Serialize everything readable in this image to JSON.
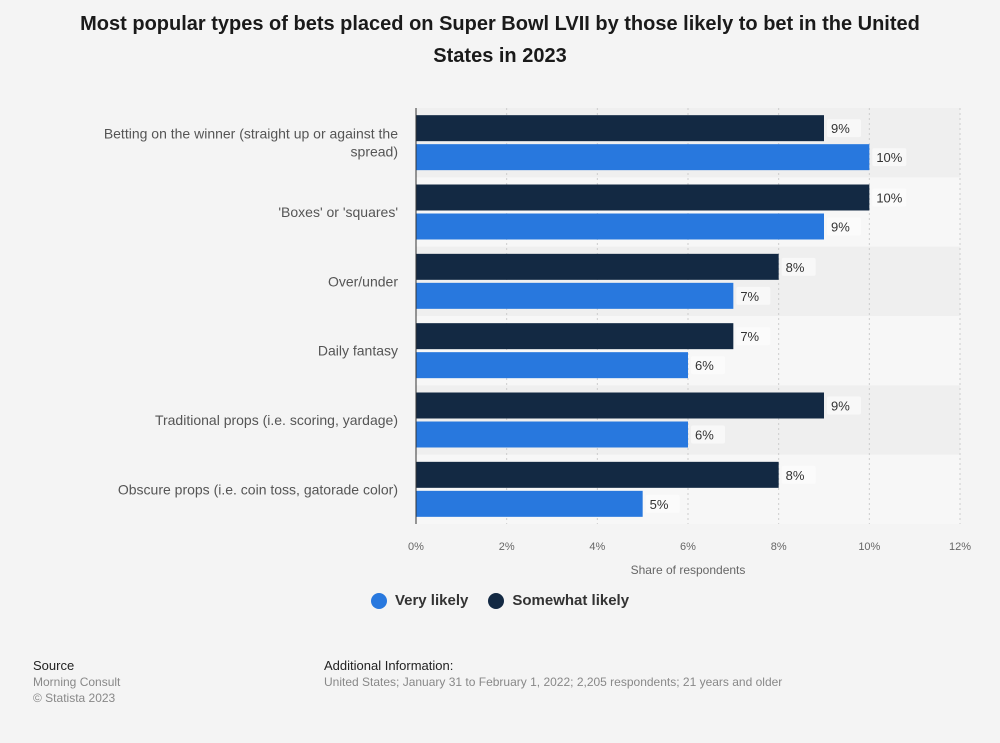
{
  "title": "Most popular types of bets placed on Super Bowl LVII by those likely to bet in the United States in 2023",
  "colors": {
    "very_likely": "#2878de",
    "somewhat_likely": "#132943",
    "band_dark": "#efefef",
    "band_light": "#f7f7f7",
    "grid": "#cccccc",
    "axis": "#333333"
  },
  "chart_data": {
    "type": "bar",
    "orientation": "horizontal",
    "categories": [
      "Betting on the winner (straight up or against the spread)",
      "'Boxes' or 'squares'",
      "Over/under",
      "Daily fantasy",
      "Traditional props (i.e. scoring, yardage)",
      "Obscure props (i.e. coin toss, gatorade color)"
    ],
    "category_lines": [
      [
        "Betting on the winner (straight up or against the",
        "spread)"
      ],
      [
        "'Boxes' or 'squares'"
      ],
      [
        "Over/under"
      ],
      [
        "Daily fantasy"
      ],
      [
        "Traditional props (i.e. scoring, yardage)"
      ],
      [
        "Obscure props (i.e. coin toss, gatorade color)"
      ]
    ],
    "series": [
      {
        "name": "Somewhat likely",
        "values": [
          9,
          10,
          8,
          7,
          9,
          8
        ],
        "labels": [
          "9%",
          "10%",
          "8%",
          "7%",
          "9%",
          "8%"
        ]
      },
      {
        "name": "Very likely",
        "values": [
          10,
          9,
          7,
          6,
          6,
          5
        ],
        "labels": [
          "10%",
          "9%",
          "7%",
          "6%",
          "6%",
          "5%"
        ]
      }
    ],
    "xlabel": "Share of respondents",
    "xlim": [
      0,
      12
    ],
    "ticks": [
      "0%",
      "2%",
      "4%",
      "6%",
      "8%",
      "10%",
      "12%"
    ],
    "tick_values": [
      0,
      2,
      4,
      6,
      8,
      10,
      12
    ],
    "grid": true,
    "legend_position": "bottom"
  },
  "legend": {
    "very_likely": "Very likely",
    "somewhat_likely": "Somewhat likely"
  },
  "footer": {
    "source_heading": "Source",
    "source_lines": [
      "Morning Consult",
      "© Statista 2023"
    ],
    "info_heading": "Additional Information:",
    "info_text": "United States; January 31 to February 1, 2022; 2,205 respondents; 21 years and older"
  }
}
